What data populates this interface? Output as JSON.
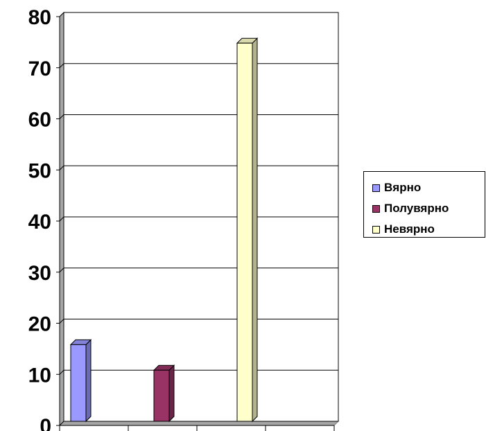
{
  "chart_data": {
    "type": "bar",
    "ylim": [
      0,
      80
    ],
    "yticks": [
      0,
      10,
      20,
      30,
      40,
      50,
      60,
      70,
      80
    ],
    "y_tick_labels": [
      "0",
      "10",
      "20",
      "30",
      "40",
      "50",
      "60",
      "70",
      "80"
    ],
    "grid": true,
    "legend_position": "right",
    "series": [
      {
        "name": "Вярно",
        "value": 15,
        "color": "#9999ff"
      },
      {
        "name": "Полувярно",
        "value": 10,
        "color": "#993366"
      },
      {
        "name": "Невярно",
        "value": 74,
        "color": "#ffffcc"
      }
    ]
  }
}
